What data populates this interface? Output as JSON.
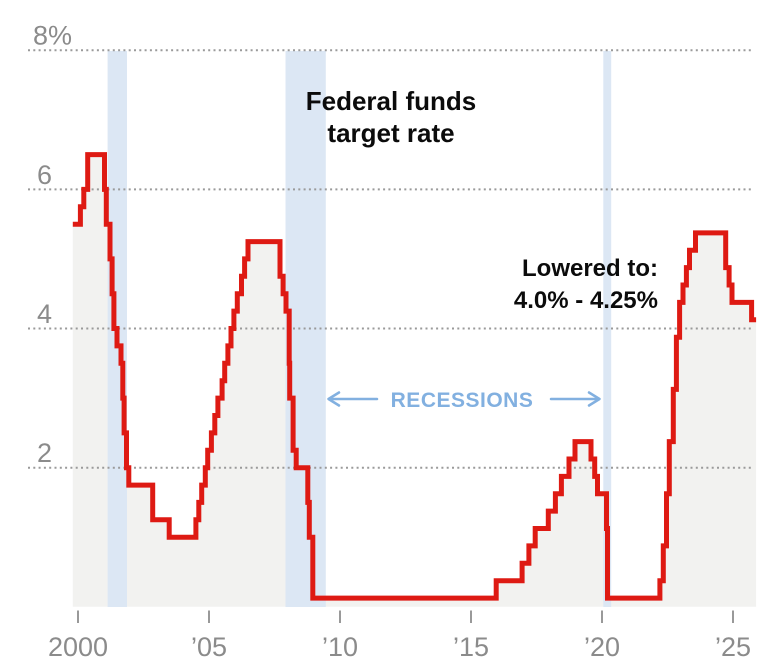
{
  "chart_data": {
    "type": "line",
    "subtype": "step-area",
    "title": {
      "text": "Federal funds target rate",
      "line1": "Federal funds",
      "line2": "target rate"
    },
    "annotation": {
      "line1": "Lowered to:",
      "line2": "4.0% - 4.25%"
    },
    "recessions": {
      "label": "RECESSIONS",
      "bands": [
        [
          2001.13,
          2001.87
        ],
        [
          2007.92,
          2009.46
        ],
        [
          2020.05,
          2020.35
        ]
      ]
    },
    "x_ticks": [
      {
        "value": 2000,
        "label": "2000"
      },
      {
        "value": 2005,
        "label": "’05"
      },
      {
        "value": 2010,
        "label": "’10"
      },
      {
        "value": 2015,
        "label": "’15"
      },
      {
        "value": 2020,
        "label": "’20"
      },
      {
        "value": 2025,
        "label": "’25"
      }
    ],
    "y_ticks": [
      {
        "value": 8,
        "label": "8%"
      },
      {
        "value": 6,
        "label": "6"
      },
      {
        "value": 4,
        "label": "4"
      },
      {
        "value": 2,
        "label": "2"
      }
    ],
    "xlim": [
      1999.8,
      2025.88
    ],
    "ylim": [
      0,
      8.3
    ],
    "grid": "dotted-horizontal",
    "series": [
      {
        "name": "Federal funds target rate",
        "points": [
          [
            1999.8,
            5.5
          ],
          [
            2000.09,
            5.75
          ],
          [
            2000.22,
            6.0
          ],
          [
            2000.37,
            6.5
          ],
          [
            2001.01,
            6.0
          ],
          [
            2001.08,
            5.5
          ],
          [
            2001.22,
            5.0
          ],
          [
            2001.3,
            4.5
          ],
          [
            2001.37,
            4.0
          ],
          [
            2001.49,
            3.75
          ],
          [
            2001.64,
            3.5
          ],
          [
            2001.71,
            3.0
          ],
          [
            2001.76,
            2.5
          ],
          [
            2001.85,
            2.0
          ],
          [
            2001.94,
            1.75
          ],
          [
            2002.85,
            1.25
          ],
          [
            2003.48,
            1.0
          ],
          [
            2004.5,
            1.25
          ],
          [
            2004.61,
            1.5
          ],
          [
            2004.72,
            1.75
          ],
          [
            2004.86,
            2.0
          ],
          [
            2004.95,
            2.25
          ],
          [
            2005.09,
            2.5
          ],
          [
            2005.22,
            2.75
          ],
          [
            2005.34,
            3.0
          ],
          [
            2005.5,
            3.25
          ],
          [
            2005.6,
            3.5
          ],
          [
            2005.72,
            3.75
          ],
          [
            2005.84,
            4.0
          ],
          [
            2005.95,
            4.25
          ],
          [
            2006.08,
            4.5
          ],
          [
            2006.24,
            4.75
          ],
          [
            2006.36,
            5.0
          ],
          [
            2006.49,
            5.25
          ],
          [
            2007.71,
            4.75
          ],
          [
            2007.83,
            4.5
          ],
          [
            2007.94,
            4.25
          ],
          [
            2008.06,
            3.5
          ],
          [
            2008.08,
            3.0
          ],
          [
            2008.21,
            2.25
          ],
          [
            2008.33,
            2.0
          ],
          [
            2008.77,
            1.5
          ],
          [
            2008.83,
            1.0
          ],
          [
            2008.96,
            0.125
          ],
          [
            2015.96,
            0.375
          ],
          [
            2016.95,
            0.625
          ],
          [
            2017.21,
            0.875
          ],
          [
            2017.45,
            1.125
          ],
          [
            2017.95,
            1.375
          ],
          [
            2018.22,
            1.625
          ],
          [
            2018.45,
            1.875
          ],
          [
            2018.74,
            2.125
          ],
          [
            2018.97,
            2.375
          ],
          [
            2019.58,
            2.125
          ],
          [
            2019.72,
            1.875
          ],
          [
            2019.83,
            1.625
          ],
          [
            2020.17,
            1.125
          ],
          [
            2020.21,
            0.125
          ],
          [
            2022.21,
            0.375
          ],
          [
            2022.34,
            0.875
          ],
          [
            2022.46,
            1.625
          ],
          [
            2022.57,
            2.375
          ],
          [
            2022.72,
            3.125
          ],
          [
            2022.84,
            3.875
          ],
          [
            2022.96,
            4.375
          ],
          [
            2023.09,
            4.625
          ],
          [
            2023.22,
            4.875
          ],
          [
            2023.34,
            5.125
          ],
          [
            2023.57,
            5.375
          ],
          [
            2024.72,
            4.875
          ],
          [
            2024.85,
            4.625
          ],
          [
            2024.96,
            4.375
          ],
          [
            2025.71,
            4.125
          ]
        ]
      }
    ],
    "colors": {
      "line": "#de1a13",
      "area_fill": "#f2f2f0",
      "recession_band": "#dce7f4",
      "recession_label": "#82b0e0",
      "axis_text": "#8b8b8b",
      "gridline": "#9a9a9a",
      "tick_mark": "#999999",
      "title_text": "#0b0b0b"
    }
  }
}
